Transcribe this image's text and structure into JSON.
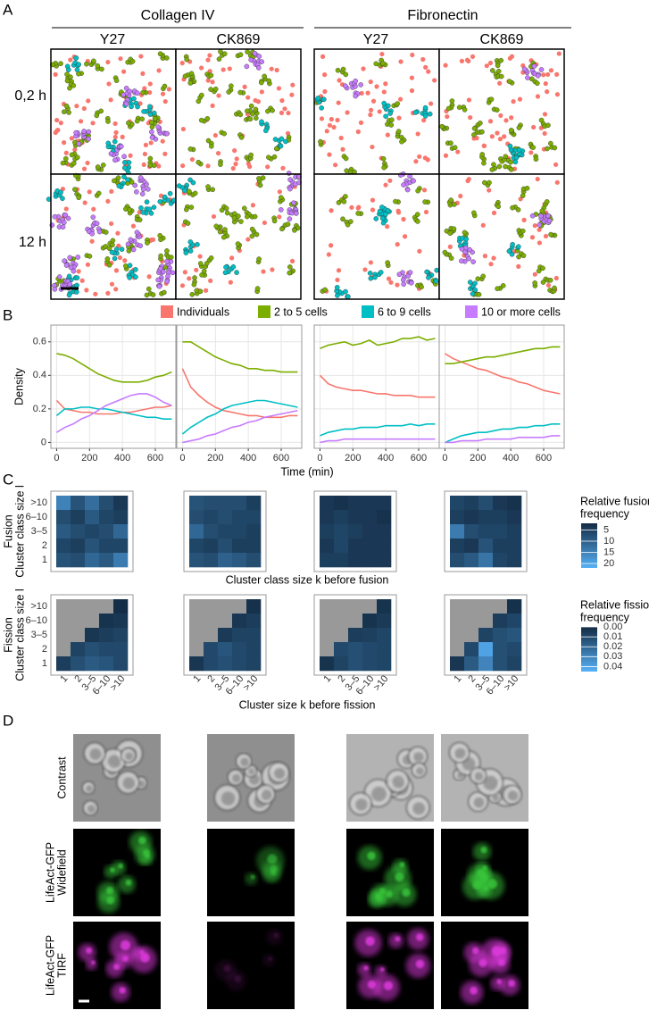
{
  "panel_labels": [
    "A",
    "B",
    "C",
    "D"
  ],
  "panel_a": {
    "substrates": [
      "Collagen IV",
      "Fibronectin"
    ],
    "treatments": [
      "Y27",
      "CK869",
      "Y27",
      "CK869"
    ],
    "times": [
      "0,2 h",
      "12 h"
    ]
  },
  "panel_b": {
    "legend": [
      {
        "name": "Individuals",
        "color": "#F8766D"
      },
      {
        "name": "2 to 5 cells",
        "color": "#7CAE00"
      },
      {
        "name": "6 to 9 cells",
        "color": "#00BFC4"
      },
      {
        "name": "10 or more cells",
        "color": "#C77CFF"
      }
    ],
    "y_label": "Density",
    "x_label": "Time (min)",
    "x": [
      0,
      50,
      100,
      150,
      200,
      250,
      300,
      350,
      400,
      450,
      500,
      550,
      600,
      650,
      700
    ],
    "xlim": [
      -35,
      725
    ],
    "ylim": [
      -0.035,
      0.7
    ],
    "xticks": [
      0,
      200,
      400,
      600
    ],
    "yticks": [
      0,
      0.2,
      0.4,
      0.6
    ],
    "grid": true,
    "charts": [
      {
        "type": "line",
        "series": [
          {
            "values": [
              0.25,
              0.2,
              0.19,
              0.18,
              0.18,
              0.17,
              0.17,
              0.17,
              0.18,
              0.18,
              0.19,
              0.2,
              0.21,
              0.21,
              0.22
            ]
          },
          {
            "values": [
              0.53,
              0.52,
              0.5,
              0.47,
              0.44,
              0.41,
              0.39,
              0.37,
              0.36,
              0.36,
              0.36,
              0.37,
              0.39,
              0.4,
              0.42
            ]
          },
          {
            "values": [
              0.16,
              0.2,
              0.2,
              0.21,
              0.21,
              0.2,
              0.2,
              0.19,
              0.18,
              0.17,
              0.16,
              0.15,
              0.15,
              0.14,
              0.14
            ]
          },
          {
            "values": [
              0.06,
              0.09,
              0.11,
              0.14,
              0.16,
              0.19,
              0.22,
              0.24,
              0.26,
              0.28,
              0.29,
              0.29,
              0.27,
              0.24,
              0.22
            ]
          }
        ]
      },
      {
        "type": "line",
        "series": [
          {
            "values": [
              0.44,
              0.33,
              0.28,
              0.24,
              0.21,
              0.19,
              0.18,
              0.17,
              0.16,
              0.16,
              0.15,
              0.15,
              0.15,
              0.16,
              0.16
            ]
          },
          {
            "values": [
              0.6,
              0.6,
              0.57,
              0.54,
              0.51,
              0.49,
              0.47,
              0.46,
              0.44,
              0.44,
              0.43,
              0.43,
              0.42,
              0.42,
              0.42
            ]
          },
          {
            "values": [
              0.05,
              0.09,
              0.12,
              0.15,
              0.17,
              0.2,
              0.22,
              0.23,
              0.24,
              0.25,
              0.25,
              0.24,
              0.23,
              0.22,
              0.21
            ]
          },
          {
            "values": [
              0,
              0.01,
              0.02,
              0.04,
              0.05,
              0.07,
              0.09,
              0.1,
              0.12,
              0.13,
              0.15,
              0.16,
              0.17,
              0.18,
              0.19
            ]
          }
        ]
      },
      {
        "type": "line",
        "series": [
          {
            "values": [
              0.4,
              0.35,
              0.33,
              0.32,
              0.31,
              0.31,
              0.3,
              0.29,
              0.29,
              0.28,
              0.28,
              0.28,
              0.27,
              0.27,
              0.27
            ]
          },
          {
            "values": [
              0.56,
              0.58,
              0.59,
              0.6,
              0.58,
              0.59,
              0.61,
              0.58,
              0.59,
              0.6,
              0.62,
              0.62,
              0.63,
              0.61,
              0.62
            ]
          },
          {
            "values": [
              0.04,
              0.06,
              0.07,
              0.08,
              0.08,
              0.09,
              0.09,
              0.09,
              0.1,
              0.1,
              0.1,
              0.11,
              0.1,
              0.11,
              0.11
            ]
          },
          {
            "values": [
              0,
              0.01,
              0.01,
              0.02,
              0.02,
              0.02,
              0.02,
              0.02,
              0.02,
              0.02,
              0.02,
              0.02,
              0.02,
              0.02,
              0.02
            ]
          }
        ]
      },
      {
        "type": "line",
        "series": [
          {
            "values": [
              0.53,
              0.5,
              0.48,
              0.46,
              0.44,
              0.43,
              0.41,
              0.39,
              0.38,
              0.36,
              0.35,
              0.33,
              0.31,
              0.3,
              0.29
            ]
          },
          {
            "values": [
              0.47,
              0.47,
              0.48,
              0.49,
              0.5,
              0.51,
              0.51,
              0.52,
              0.53,
              0.54,
              0.55,
              0.56,
              0.56,
              0.57,
              0.57
            ]
          },
          {
            "values": [
              0,
              0.02,
              0.04,
              0.05,
              0.06,
              0.06,
              0.07,
              0.08,
              0.08,
              0.09,
              0.09,
              0.1,
              0.1,
              0.11,
              0.11
            ]
          },
          {
            "values": [
              0,
              0,
              0.01,
              0.01,
              0.01,
              0.02,
              0.02,
              0.02,
              0.02,
              0.03,
              0.03,
              0.03,
              0.03,
              0.04,
              0.04
            ]
          }
        ]
      }
    ]
  },
  "panel_c": {
    "row_labels": [
      ">10",
      "6–10",
      "3–5",
      "2",
      "1"
    ],
    "fusion": {
      "y_label": [
        "Fusion",
        "Cluster class size l"
      ],
      "x_label": "Cluster class size k before fusion",
      "legend_title": [
        "Relative fusion",
        "frequency"
      ],
      "fill_limits": [
        2,
        22
      ],
      "ticks": [
        5,
        10,
        15,
        20
      ],
      "low_color": "#132B43",
      "high_color": "#56B1F7",
      "charts": [
        {
          "type": "heatmap",
          "values": [
            [
              15,
              8,
              12,
              7,
              4
            ],
            [
              7,
              5,
              9,
              6,
              5
            ],
            [
              9,
              7,
              6,
              7,
              11
            ],
            [
              6,
              5,
              8,
              6,
              6
            ],
            [
              8,
              7,
              11,
              9,
              14
            ]
          ]
        },
        {
          "type": "heatmap",
          "values": [
            [
              8,
              7,
              7,
              7,
              5
            ],
            [
              7,
              6,
              7,
              6,
              6
            ],
            [
              11,
              7,
              6,
              6,
              5
            ],
            [
              6,
              5,
              7,
              5,
              5
            ],
            [
              8,
              7,
              10,
              9,
              7
            ]
          ]
        },
        {
          "type": "heatmap",
          "values": [
            [
              4,
              3,
              4,
              4,
              4
            ],
            [
              4,
              5,
              4,
              4,
              3
            ],
            [
              5,
              6,
              5,
              4,
              4
            ],
            [
              4,
              6,
              4,
              4,
              4
            ],
            [
              5,
              5,
              4,
              4,
              4
            ]
          ]
        },
        {
          "type": "heatmap",
          "values": [
            [
              6,
              5,
              7,
              4,
              3
            ],
            [
              5,
              4,
              5,
              5,
              4
            ],
            [
              14,
              7,
              6,
              6,
              5
            ],
            [
              5,
              4,
              8,
              5,
              5
            ],
            [
              7,
              9,
              13,
              6,
              5
            ]
          ]
        }
      ]
    },
    "fission": {
      "y_label": [
        "Fission",
        "Cluster class size l"
      ],
      "x_label": "Cluster size k before fission",
      "col_labels": [
        "1",
        "2",
        "3–5",
        "6–10",
        ">10"
      ],
      "legend_title": [
        "Relative fission",
        "frequency"
      ],
      "fill_limits": [
        0,
        0.045
      ],
      "ticks": [
        {
          "value": 0,
          "label": "0.00"
        },
        {
          "value": 0.01,
          "label": "0.01"
        },
        {
          "value": 0.02,
          "label": "0.02"
        },
        {
          "value": 0.03,
          "label": "0.03"
        },
        {
          "value": 0.04,
          "label": "0.04"
        }
      ],
      "low_color": "#132B43",
      "high_color": "#56B1F7",
      "na_color": "#999999",
      "charts": [
        {
          "type": "heatmap",
          "values": [
            [
              null,
              null,
              null,
              null,
              0.001
            ],
            [
              null,
              null,
              null,
              0.003,
              0.004
            ],
            [
              null,
              null,
              0.004,
              0.006,
              0.008
            ],
            [
              null,
              0.008,
              0.012,
              0.01,
              0.01
            ],
            [
              0.006,
              0.012,
              0.016,
              0.014,
              0.01
            ]
          ]
        },
        {
          "type": "heatmap",
          "values": [
            [
              null,
              null,
              null,
              null,
              0.002
            ],
            [
              null,
              null,
              null,
              0.004,
              0.006
            ],
            [
              null,
              null,
              0.005,
              0.008,
              0.008
            ],
            [
              null,
              0.01,
              0.014,
              0.01,
              0.008
            ],
            [
              0.004,
              0.01,
              0.012,
              0.01,
              0.008
            ]
          ]
        },
        {
          "type": "heatmap",
          "values": [
            [
              null,
              null,
              null,
              null,
              0.003
            ],
            [
              null,
              null,
              null,
              0.003,
              0.005
            ],
            [
              null,
              null,
              0.006,
              0.007,
              0.009
            ],
            [
              null,
              0.01,
              0.012,
              0.01,
              0.009
            ],
            [
              0.003,
              0.008,
              0.012,
              0.01,
              0.009
            ]
          ]
        },
        {
          "type": "heatmap",
          "values": [
            [
              null,
              null,
              null,
              null,
              0.002
            ],
            [
              null,
              null,
              null,
              0.006,
              0.009
            ],
            [
              null,
              null,
              0.008,
              0.012,
              0.014
            ],
            [
              null,
              0.01,
              0.04,
              0.012,
              0.01
            ],
            [
              0.004,
              0.016,
              0.03,
              0.012,
              0.008
            ]
          ]
        }
      ]
    }
  },
  "panel_d": {
    "row_labels": [
      [
        "Contrast"
      ],
      [
        "LifeAct-GFP",
        "Widefield"
      ],
      [
        "LifeAct-GFP",
        "TIRF"
      ]
    ]
  }
}
